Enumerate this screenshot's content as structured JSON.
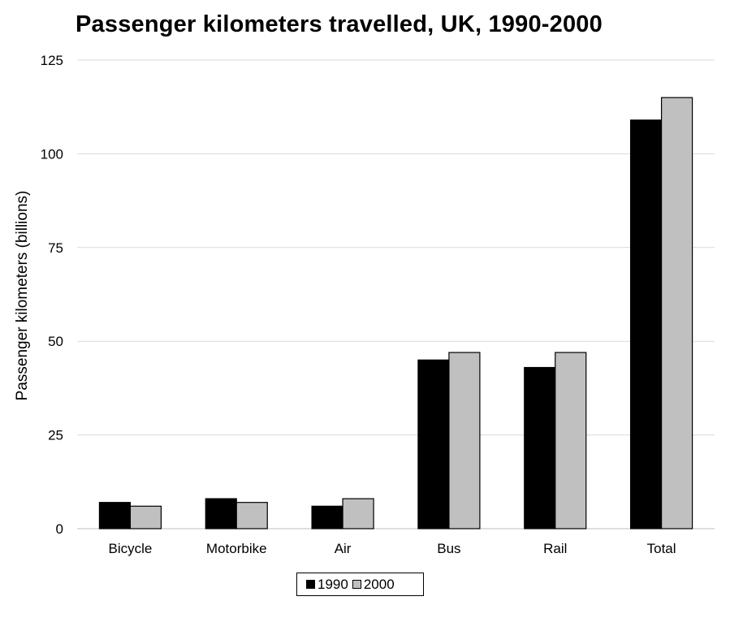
{
  "chart_data": {
    "type": "bar",
    "title": "Passenger kilometers travelled, UK, 1990-2000",
    "xlabel": "",
    "ylabel": "Passenger kilometers (billions)",
    "ylim": [
      0,
      125
    ],
    "yticks": [
      "0",
      "25",
      "50",
      "75",
      "100",
      "125"
    ],
    "grid": true,
    "legend_position": "bottom",
    "categories": [
      "Bicycle",
      "Motorbike",
      "Air",
      "Bus",
      "Rail",
      "Total"
    ],
    "series": [
      {
        "name": "1990",
        "color": "#000000",
        "values": [
          7,
          8,
          6,
          45,
          43,
          109
        ]
      },
      {
        "name": "2000",
        "color": "#c0c0c0",
        "values": [
          6,
          7,
          8,
          47,
          47,
          115
        ]
      }
    ]
  }
}
